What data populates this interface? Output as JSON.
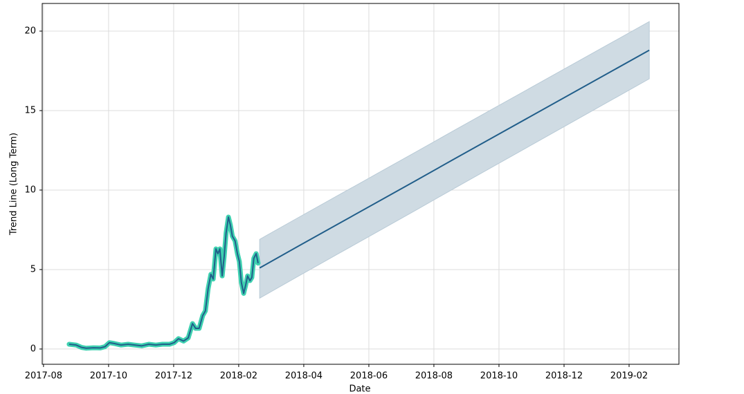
{
  "chart_data": {
    "type": "line",
    "x_label": "Date",
    "y_label": "Trend Line (Long Term)",
    "xlim": [
      2017.58,
      2019.211
    ],
    "ylim": [
      -0.96,
      21.74
    ],
    "xticks": [
      {
        "value": 2017.5833,
        "label": "2017-08"
      },
      {
        "value": 2017.75,
        "label": "2017-10"
      },
      {
        "value": 2017.9167,
        "label": "2017-12"
      },
      {
        "value": 2018.0833,
        "label": "2018-02"
      },
      {
        "value": 2018.25,
        "label": "2018-04"
      },
      {
        "value": 2018.4167,
        "label": "2018-06"
      },
      {
        "value": 2018.5833,
        "label": "2018-08"
      },
      {
        "value": 2018.75,
        "label": "2018-10"
      },
      {
        "value": 2018.9167,
        "label": "2018-12"
      },
      {
        "value": 2019.0833,
        "label": "2019-02"
      }
    ],
    "yticks": [
      0,
      5,
      10,
      15,
      20
    ],
    "grid": true,
    "series": [
      {
        "color": "#3fd1b0",
        "x": [
          2017.649,
          2017.667,
          2017.681,
          2017.693,
          2017.711,
          2017.729,
          2017.741,
          2017.752,
          2017.764,
          2017.782,
          2017.8,
          2017.817,
          2017.835,
          2017.853,
          2017.871,
          2017.888,
          2017.906,
          2017.918,
          2017.929,
          2017.942,
          2017.954,
          2017.965,
          2017.973,
          2017.982,
          2017.991,
          2017.998,
          2018.005,
          2018.012,
          2018.018,
          2018.025,
          2018.03,
          2018.035,
          2018.041,
          2018.046,
          2018.051,
          2018.057,
          2018.062,
          2018.067,
          2018.074,
          2018.08,
          2018.085,
          2018.09,
          2018.096,
          2018.101,
          2018.106,
          2018.112,
          2018.117,
          2018.122,
          2018.128,
          2018.133
        ],
        "values": [
          0.3,
          0.25,
          0.1,
          0.05,
          0.08,
          0.07,
          0.15,
          0.4,
          0.35,
          0.25,
          0.3,
          0.25,
          0.2,
          0.3,
          0.25,
          0.3,
          0.3,
          0.4,
          0.65,
          0.5,
          0.7,
          1.6,
          1.3,
          1.3,
          2.1,
          2.4,
          3.8,
          4.7,
          4.4,
          6.3,
          6.0,
          6.3,
          4.6,
          5.8,
          7.3,
          8.3,
          7.8,
          7.1,
          6.8,
          6.0,
          5.5,
          4.2,
          3.5,
          4.0,
          4.6,
          4.3,
          4.5,
          5.7,
          6.0,
          5.4
        ]
      },
      {
        "color": "#215e8a",
        "x": [
          2018.137,
          2018.236,
          2018.336,
          2018.436,
          2018.536,
          2018.635,
          2018.735,
          2018.835,
          2018.935,
          2019.035,
          2019.135
        ],
        "values": [
          5.1,
          6.47,
          7.84,
          9.21,
          10.58,
          11.95,
          13.32,
          14.69,
          16.06,
          17.43,
          18.8
        ]
      }
    ],
    "band": {
      "color": "#cfdbe3",
      "x": [
        2018.137,
        2018.236,
        2018.336,
        2018.436,
        2018.536,
        2018.635,
        2018.735,
        2018.835,
        2018.935,
        2019.035,
        2019.135
      ],
      "lower": [
        3.2,
        4.58,
        5.96,
        7.34,
        8.72,
        10.1,
        11.48,
        12.86,
        14.24,
        15.62,
        17.0
      ],
      "upper": [
        6.9,
        8.27,
        9.64,
        11.01,
        12.38,
        13.75,
        15.12,
        16.49,
        17.86,
        19.23,
        20.6
      ]
    }
  }
}
